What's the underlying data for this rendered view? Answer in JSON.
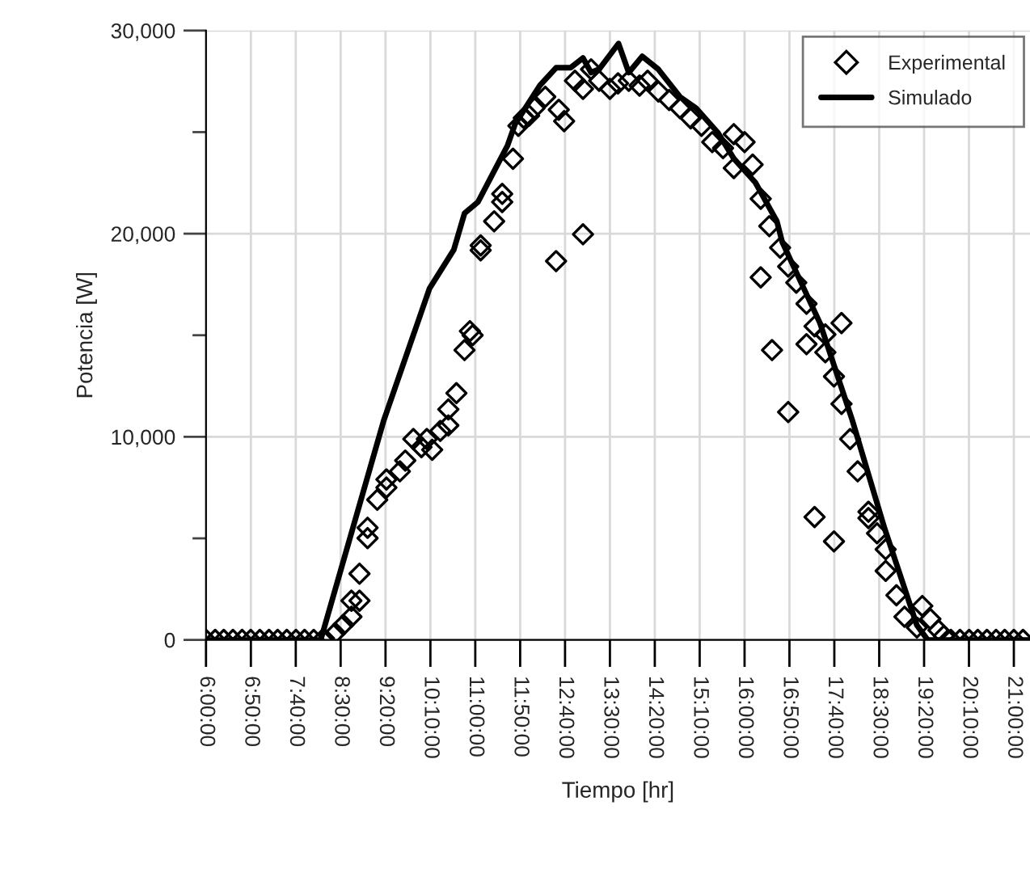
{
  "chart_data": {
    "type": "scatter",
    "xlabel": "Tiempo [hr]",
    "ylabel": "Potencia [W]",
    "xlim": [
      6,
      21.3
    ],
    "ylim": [
      0,
      30000
    ],
    "xticks": [
      {
        "value": 6,
        "label": "6:00:00"
      },
      {
        "value": 6.8333,
        "label": "6:50:00"
      },
      {
        "value": 7.6667,
        "label": "7:40:00"
      },
      {
        "value": 8.5,
        "label": "8:30:00"
      },
      {
        "value": 9.3333,
        "label": "9:20:00"
      },
      {
        "value": 10.1667,
        "label": "10:10:00"
      },
      {
        "value": 11,
        "label": "11:00:00"
      },
      {
        "value": 11.8333,
        "label": "11:50:00"
      },
      {
        "value": 12.6667,
        "label": "12:40:00"
      },
      {
        "value": 13.5,
        "label": "13:30:00"
      },
      {
        "value": 14.3333,
        "label": "14:20:00"
      },
      {
        "value": 15.1667,
        "label": "15:10:00"
      },
      {
        "value": 16,
        "label": "16:00:00"
      },
      {
        "value": 16.8333,
        "label": "16:50:00"
      },
      {
        "value": 17.6667,
        "label": "17:40:00"
      },
      {
        "value": 18.5,
        "label": "18:30:00"
      },
      {
        "value": 19.3333,
        "label": "19:20:00"
      },
      {
        "value": 20.1667,
        "label": "20:10:00"
      },
      {
        "value": 21,
        "label": "21:00:00"
      }
    ],
    "yticks": [
      {
        "value": 0,
        "label": "0"
      },
      {
        "value": 5000,
        "label": null
      },
      {
        "value": 10000,
        "label": "10,000"
      },
      {
        "value": 15000,
        "label": null
      },
      {
        "value": 20000,
        "label": "20,000"
      },
      {
        "value": 25000,
        "label": null
      },
      {
        "value": 30000,
        "label": "30,000"
      }
    ],
    "grid": true,
    "legend": "top right",
    "series": [
      {
        "name": "Experimental",
        "marker": "diamond",
        "color": "#000000",
        "x": [
          6.0,
          6.17,
          6.33,
          6.5,
          6.67,
          6.83,
          7.0,
          7.17,
          7.33,
          7.5,
          7.67,
          7.83,
          8.0,
          8.19,
          8.4,
          8.55,
          8.7,
          8.7,
          8.85,
          8.85,
          9.0,
          9.0,
          9.18,
          9.35,
          9.35,
          9.6,
          9.7,
          9.85,
          10.0,
          10.1,
          10.2,
          10.35,
          10.5,
          10.5,
          10.65,
          10.8,
          10.9,
          10.95,
          11.1,
          11.1,
          11.35,
          11.5,
          11.5,
          11.7,
          11.8,
          11.9,
          12.0,
          12.1,
          12.3,
          12.5,
          12.55,
          12.65,
          12.85,
          13.0,
          13.0,
          13.15,
          13.3,
          13.5,
          13.65,
          13.85,
          14.05,
          14.2,
          14.4,
          14.6,
          14.8,
          15.0,
          15.2,
          15.4,
          15.6,
          15.8,
          15.8,
          16.0,
          16.15,
          16.3,
          16.3,
          16.46,
          16.51,
          16.66,
          16.81,
          16.81,
          16.96,
          17.15,
          17.15,
          17.3,
          17.3,
          17.5,
          17.5,
          17.66,
          17.66,
          17.8,
          17.8,
          17.96,
          18.1,
          18.3,
          18.3,
          18.46,
          18.62,
          18.62,
          18.82,
          18.97,
          19.2,
          19.3,
          19.45,
          19.6,
          19.7,
          19.83,
          20.0,
          20.17,
          20.33,
          20.5,
          20.67,
          20.83,
          21.0,
          21.17
        ],
        "values": [
          0,
          0,
          0,
          0,
          0,
          0,
          0,
          0,
          0,
          0,
          0,
          0,
          0,
          80,
          340,
          740,
          1140,
          1930,
          1930,
          3260,
          5010,
          5520,
          6900,
          7500,
          7900,
          8300,
          8830,
          9890,
          9490,
          9890,
          9360,
          10290,
          10560,
          11350,
          12150,
          14270,
          15200,
          15000,
          19180,
          19420,
          20610,
          21560,
          21960,
          23690,
          25310,
          25700,
          25810,
          26180,
          26740,
          18650,
          26100,
          25540,
          27530,
          19970,
          27130,
          28090,
          27530,
          27130,
          27400,
          27530,
          27290,
          27530,
          27000,
          26580,
          26180,
          25680,
          25310,
          24510,
          24210,
          24900,
          23230,
          24510,
          23400,
          21720,
          17850,
          20370,
          14270,
          19310,
          18380,
          11220,
          17590,
          16550,
          14560,
          15440,
          6050,
          15040,
          14160,
          12970,
          4850,
          11620,
          15600,
          9890,
          8300,
          6310,
          6000,
          5250,
          4460,
          3400,
          2200,
          1140,
          610,
          1670,
          1030,
          480,
          200,
          0,
          0,
          0,
          0,
          0,
          0,
          0,
          0,
          0
        ]
      },
      {
        "name": "Simulado",
        "type": "line",
        "line_style": "solid",
        "marker": "none",
        "color": "#000000",
        "x": [
          6.0,
          8.0,
          8.13,
          9.3,
          10.15,
          10.6,
          10.8,
          11.05,
          11.6,
          11.74,
          12.2,
          12.5,
          12.77,
          13.0,
          13.15,
          13.3,
          13.66,
          13.85,
          14.1,
          14.4,
          14.8,
          15.1,
          15.5,
          15.8,
          16.2,
          16.6,
          16.7,
          17.4,
          18.0,
          18.6,
          19.2,
          19.4,
          21.3
        ],
        "values": [
          0,
          0,
          0,
          10800,
          17300,
          19200,
          21000,
          21560,
          24350,
          25400,
          27300,
          28170,
          28170,
          28650,
          27930,
          28100,
          29360,
          27930,
          28730,
          28090,
          26740,
          26180,
          24990,
          23700,
          22520,
          20610,
          19580,
          15600,
          10820,
          5490,
          720,
          0,
          0
        ]
      }
    ]
  }
}
